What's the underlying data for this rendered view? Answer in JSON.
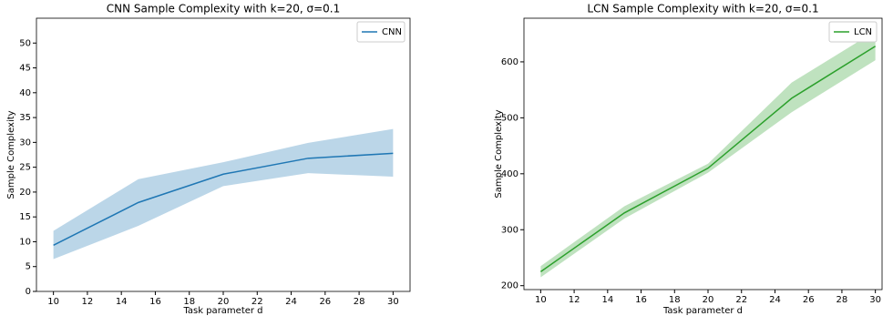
{
  "chart_data": [
    {
      "type": "line",
      "title": "CNN Sample Complexity with k=20, σ=0.1",
      "x_label": "Task parameter d",
      "y_label": "Sample Complexity",
      "x": [
        10,
        15,
        20,
        25,
        30
      ],
      "series": [
        {
          "name": "CNN",
          "color": "#1f77b4",
          "values": [
            9.3,
            17.9,
            23.6,
            26.8,
            27.8
          ],
          "lower": [
            6.5,
            13.2,
            21.2,
            23.8,
            23.1
          ],
          "upper": [
            12.2,
            22.6,
            26.0,
            29.9,
            32.7
          ]
        }
      ],
      "xlim": [
        9,
        31
      ],
      "ylim": [
        0,
        55
      ],
      "xticks": [
        10,
        12,
        14,
        16,
        18,
        20,
        22,
        24,
        26,
        28,
        30
      ],
      "yticks": [
        0,
        5,
        10,
        15,
        20,
        25,
        30,
        35,
        40,
        45,
        50
      ],
      "legend": "upper right"
    },
    {
      "type": "line",
      "title": "LCN Sample Complexity with k=20, σ=0.1",
      "x_label": "Task parameter d",
      "y_label": "Sample Complexity",
      "x": [
        10,
        15,
        20,
        25,
        30
      ],
      "series": [
        {
          "name": "LCN",
          "color": "#2ca02c",
          "values": [
            225,
            330,
            410,
            535,
            628
          ],
          "lower": [
            215,
            320,
            402,
            510,
            603
          ],
          "upper": [
            235,
            342,
            418,
            563,
            655
          ]
        }
      ],
      "xlim": [
        9,
        30.4
      ],
      "ylim": [
        193,
        678
      ],
      "xticks": [
        10,
        12,
        14,
        16,
        18,
        20,
        22,
        24,
        26,
        28,
        30
      ],
      "yticks": [
        200,
        300,
        400,
        500,
        600
      ],
      "legend": "upper right"
    }
  ]
}
